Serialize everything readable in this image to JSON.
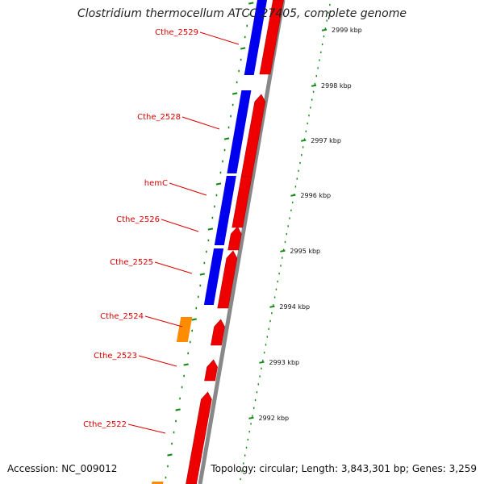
{
  "title": "Clostridium thermocellum ATCC 27405, complete genome",
  "footer": {
    "accession": "Accession: NC_009012",
    "topology": "Topology: circular; Length: 3,843,301 bp; Genes: 3,259"
  },
  "genes": [
    {
      "label": "Cthe_2529"
    },
    {
      "label": "Cthe_2528"
    },
    {
      "label": "hemC"
    },
    {
      "label": "Cthe_2526"
    },
    {
      "label": "Cthe_2525"
    },
    {
      "label": "Cthe_2524"
    },
    {
      "label": "Cthe_2523"
    },
    {
      "label": "Cthe_2522"
    }
  ],
  "ticks": [
    "2999 kbp",
    "2998 kbp",
    "2997 kbp",
    "2996 kbp",
    "2995 kbp",
    "2994 kbp",
    "2993 kbp",
    "2992 kbp"
  ],
  "colors": {
    "cds": "#ee0000",
    "strand": "#0000ee",
    "rna": "#ff8c00",
    "backbone": "#888888",
    "ruler": "#118811",
    "label": "#dd0000"
  }
}
